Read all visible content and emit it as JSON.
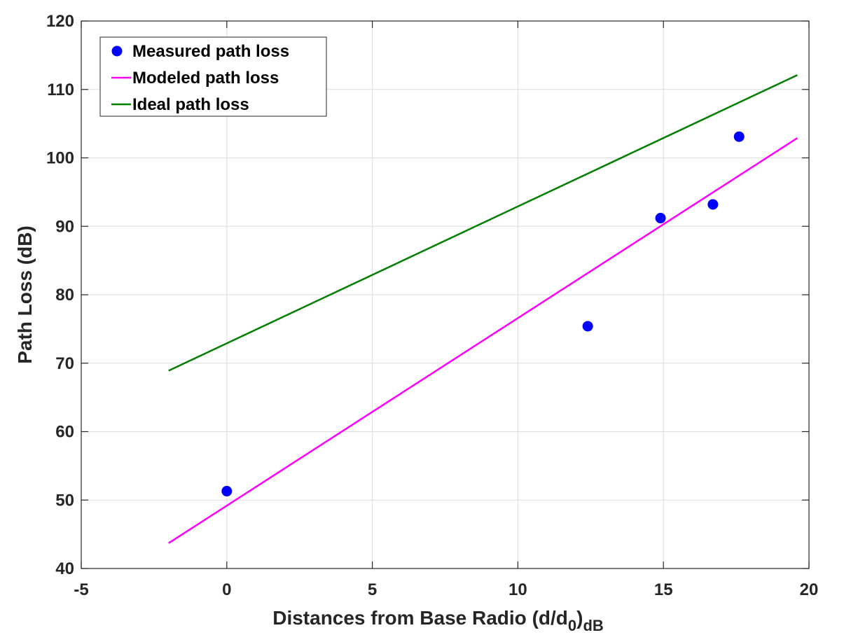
{
  "chart_data": {
    "type": "scatter",
    "title": "",
    "xlabel": "Distances from Base Radio (d/d",
    "xlabel_sub": "0",
    "xlabel_sub2": "dB",
    "xlabel_close": ")",
    "ylabel": "Path Loss (dB)",
    "xlim": [
      -5,
      20
    ],
    "ylim": [
      40,
      120
    ],
    "xticks": [
      -5,
      0,
      5,
      10,
      15,
      20
    ],
    "yticks": [
      40,
      50,
      60,
      70,
      80,
      90,
      100,
      110,
      120
    ],
    "grid": true,
    "legend_position": "top-left",
    "series": [
      {
        "name": "Measured path loss",
        "kind": "scatter",
        "color": "#0000ff",
        "x": [
          0,
          12.4,
          14.9,
          16.7,
          17.6
        ],
        "y": [
          51.3,
          75.4,
          91.2,
          93.2,
          103.1
        ]
      },
      {
        "name": "Modeled path loss",
        "kind": "line",
        "color": "#ff00ff",
        "x": [
          -2,
          19.6
        ],
        "y": [
          43.7,
          102.9
        ]
      },
      {
        "name": "Ideal path loss",
        "kind": "line",
        "color": "#007f00",
        "x": [
          -2,
          19.6
        ],
        "y": [
          68.9,
          112.1
        ]
      }
    ]
  }
}
